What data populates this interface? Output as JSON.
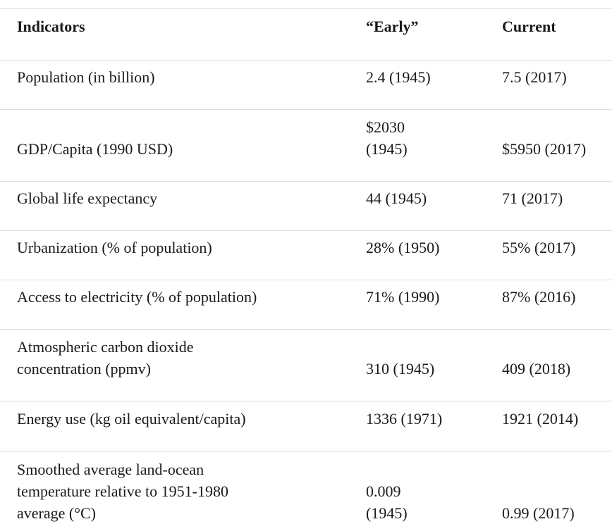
{
  "table": {
    "headers": [
      "Indicators",
      "“Early”",
      "Current"
    ],
    "rows": [
      {
        "indicator": "Population (in billion)",
        "early": "2.4 (1945)",
        "current": "7.5 (2017)"
      },
      {
        "indicator": "GDP/Capita (1990 USD)",
        "early": "$2030 (1945)",
        "current": "$5950 (2017)"
      },
      {
        "indicator": "Global life expectancy",
        "early": "44 (1945)",
        "current": "71 (2017)"
      },
      {
        "indicator": "Urbanization (% of population)",
        "early": "28% (1950)",
        "current": "55% (2017)"
      },
      {
        "indicator": "Access to electricity (% of population)",
        "early": "71% (1990)",
        "current": "87% (2016)"
      },
      {
        "indicator": "Atmospheric carbon dioxide concentration (ppmv)",
        "early": "310 (1945)",
        "current": "409 (2018)"
      },
      {
        "indicator": "Energy use (kg oil equivalent/capita)",
        "early": "1336 (1971)",
        "current": "1921 (2014)"
      },
      {
        "indicator": "Smoothed average land-ocean temperature relative to 1951-1980 average (°C)",
        "early": "0.009 (1945)",
        "current": "0.99 (2017)"
      }
    ]
  }
}
